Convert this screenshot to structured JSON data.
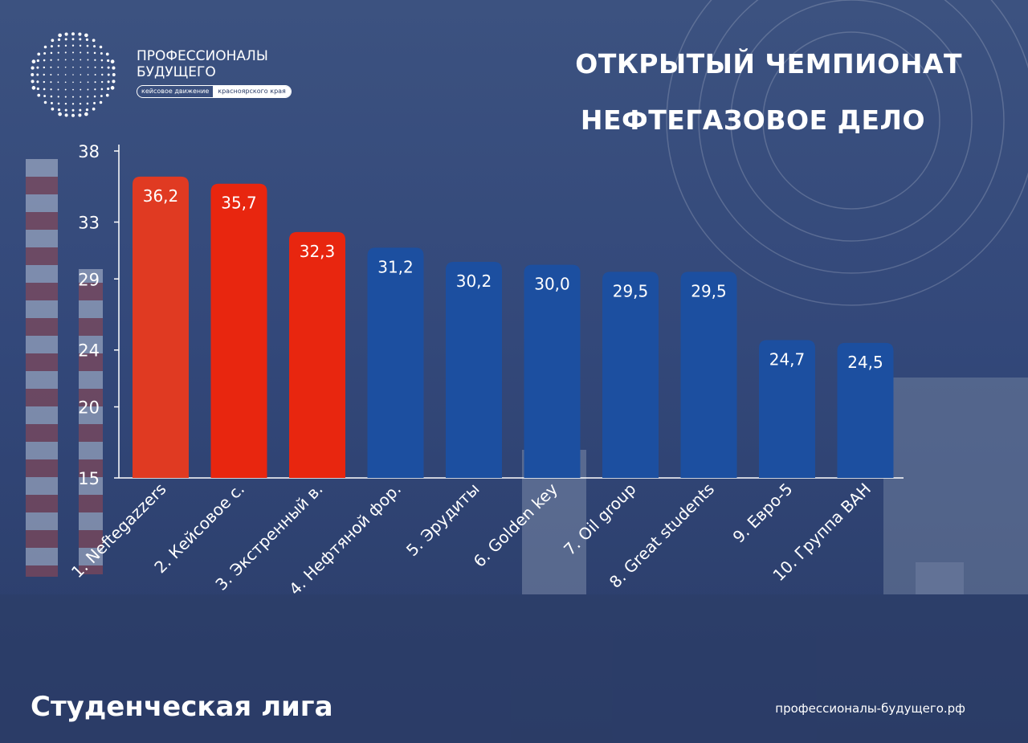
{
  "logo": {
    "title_line1": "ПРОФЕССИОНАЛЫ",
    "title_line2": "БУДУЩЕГО",
    "tag_left": "кейсовое движение",
    "tag_right": "красноярского края"
  },
  "header": {
    "line1": "ОТКРЫТЫЙ ЧЕМПИОНАТ",
    "line2": "НЕФТЕГАЗОВОЕ ДЕЛО"
  },
  "footer": {
    "league": "Студенческая лига",
    "website": "профессионалы-будущего.рф"
  },
  "colors": {
    "top_bar": "#e03a22",
    "top_bar_alt": "#e8260f",
    "bar": "#1c4fa0",
    "axis": "#ffffff"
  },
  "chart_data": {
    "type": "bar",
    "categories": [
      "1. Neftegazzers",
      "2. Кейсовое с.",
      "3. Экстренный в.",
      "4. Нефтяной фор.",
      "5. Эрудиты",
      "6. Golden key",
      "7. Oil group",
      "8. Great students",
      "9. Евро-5",
      "10. Группа ВАН"
    ],
    "values": [
      36.2,
      35.7,
      32.3,
      31.2,
      30.2,
      30.0,
      29.5,
      29.5,
      24.7,
      24.5
    ],
    "value_labels": [
      "36,2",
      "35,7",
      "32,3",
      "31,2",
      "30,2",
      "30,0",
      "29,5",
      "29,5",
      "24,7",
      "24,5"
    ],
    "bar_colors": [
      "#e03a22",
      "#e8260f",
      "#e8260f",
      "#1c4fa0",
      "#1c4fa0",
      "#1c4fa0",
      "#1c4fa0",
      "#1c4fa0",
      "#1c4fa0",
      "#1c4fa0"
    ],
    "yticks": [
      "15",
      "20",
      "24",
      "29",
      "33",
      "38"
    ],
    "ylim": [
      15,
      38
    ],
    "grid": false,
    "legend": "none",
    "title": "",
    "xlabel": "",
    "ylabel": ""
  }
}
